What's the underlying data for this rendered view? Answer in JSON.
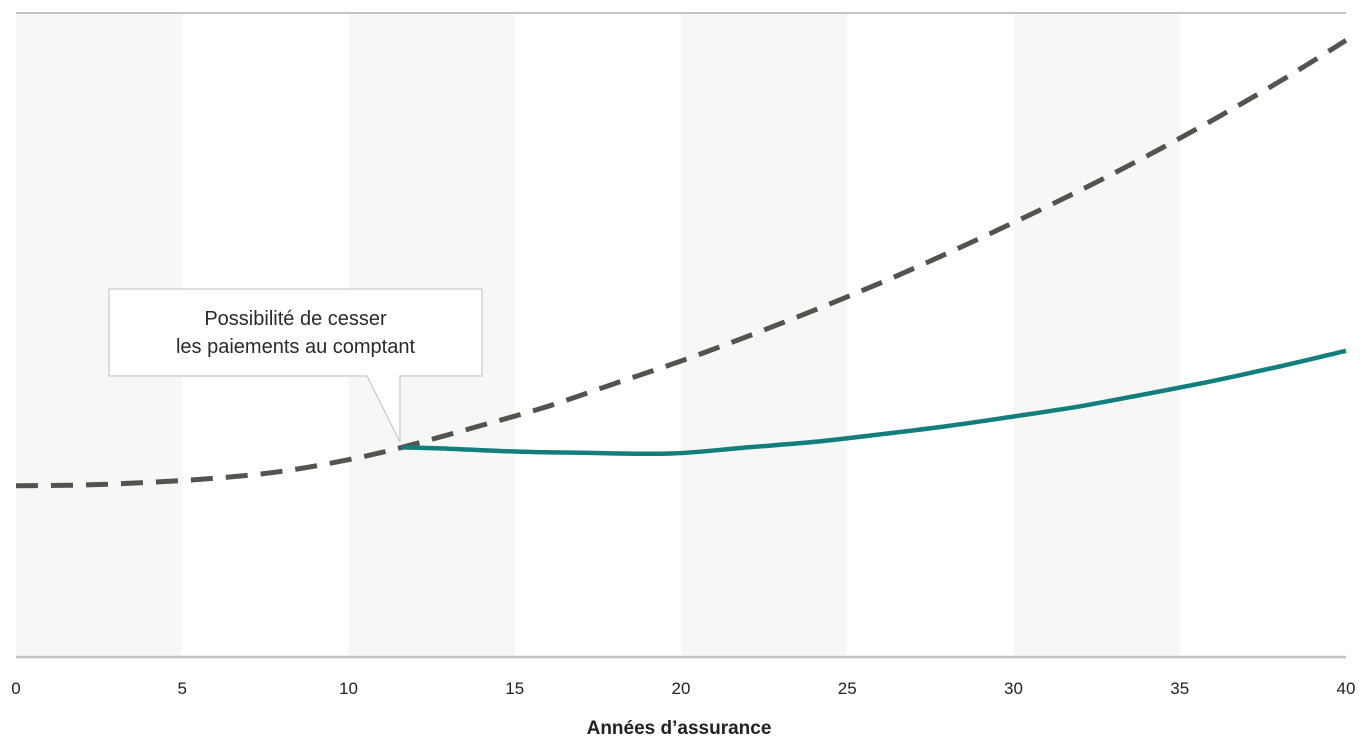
{
  "chart_data": {
    "type": "line",
    "xlabel": "Années d’assurance",
    "ylabel": "",
    "xlim": [
      0,
      40
    ],
    "x_ticks": [
      "0",
      "5",
      "10",
      "15",
      "20",
      "25",
      "30",
      "35",
      "40"
    ],
    "shaded_bands": [
      [
        0,
        5
      ],
      [
        10,
        15
      ],
      [
        20,
        25
      ],
      [
        30,
        35
      ]
    ],
    "band_color": "#f7f7f5",
    "axis_color": "#c4c4c4",
    "series": [
      {
        "style": "dashed",
        "color": "#54544e",
        "x": [
          0,
          2,
          4,
          6,
          8,
          10,
          11.6,
          14,
          16,
          18,
          20,
          22,
          24,
          26,
          28,
          30,
          32,
          34,
          36,
          38,
          40
        ],
        "y": [
          25.0,
          25.1,
          25.5,
          26.1,
          27.1,
          28.8,
          30.6,
          33.8,
          36.6,
          39.9,
          43.2,
          46.8,
          50.6,
          54.6,
          58.9,
          63.4,
          68.1,
          73.1,
          78.4,
          84.0,
          90.0
        ]
      },
      {
        "style": "solid",
        "color": "#127f7e",
        "x": [
          11.6,
          13,
          15,
          17,
          19.7,
          22,
          24,
          26,
          28,
          30,
          32,
          34,
          36,
          38,
          40
        ],
        "y": [
          30.6,
          30.4,
          30.0,
          29.8,
          29.7,
          30.6,
          31.4,
          32.5,
          33.7,
          35.1,
          36.6,
          38.4,
          40.3,
          42.4,
          44.7
        ]
      }
    ],
    "annotation": {
      "lines": [
        "Possibilité de cesser",
        "les paiements au comptant"
      ],
      "points_to_x": 11.6
    }
  }
}
